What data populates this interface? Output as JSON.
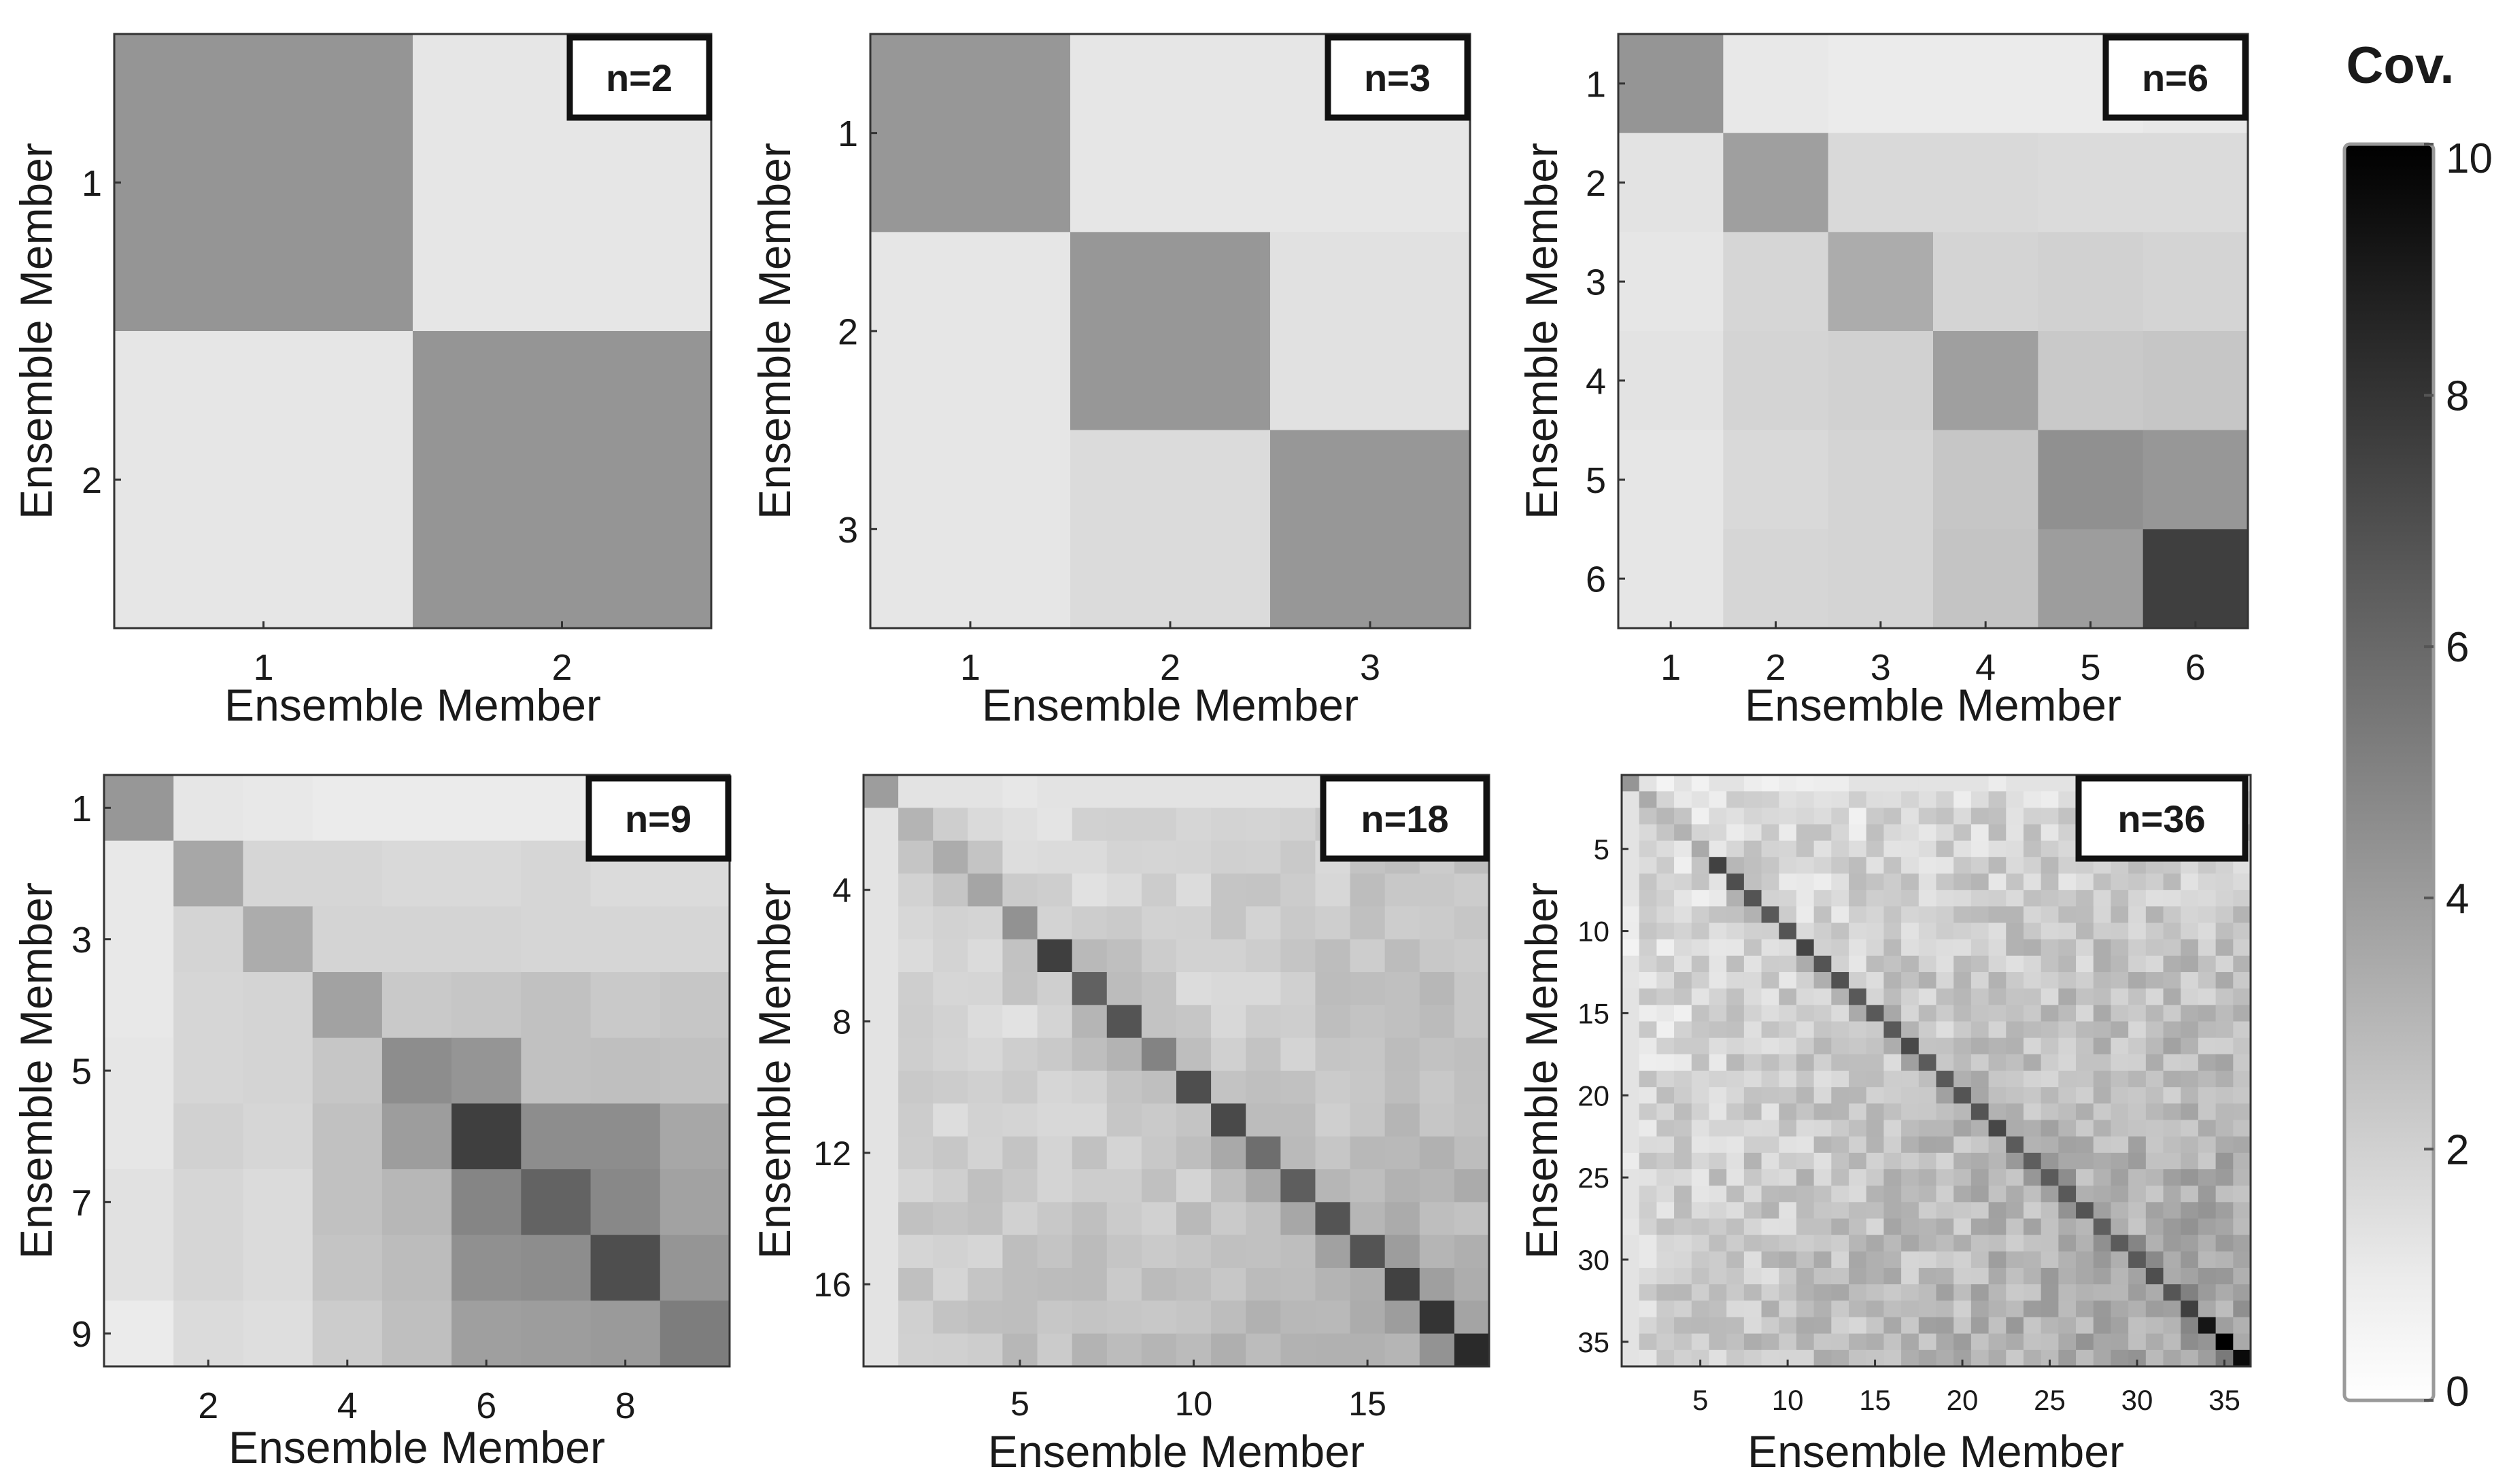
{
  "chart_data": [
    {
      "type": "heatmap",
      "badge": "n=2",
      "xlabel": "Ensemble Member",
      "ylabel": "Ensemble Member",
      "x_ticks": [
        "1",
        "2"
      ],
      "y_ticks": [
        "1",
        "2"
      ],
      "diag": [
        4.3,
        4.3
      ],
      "pair": [
        [
          1,
          1,
          0.8
        ]
      ],
      "values": [
        [
          4.3,
          1.2
        ],
        [
          1.2,
          4.3
        ]
      ]
    },
    {
      "type": "heatmap",
      "badge": "n=3",
      "xlabel": "Ensemble Member",
      "ylabel": "Ensemble Member",
      "x_ticks": [
        "1",
        "2",
        "3"
      ],
      "y_ticks": [
        "1",
        "2",
        "3"
      ],
      "diag": [
        4.2,
        4.2,
        4.2
      ],
      "pair": [
        [
          1,
          1,
          0.8
        ]
      ],
      "values": [
        [
          4.2,
          1.2,
          1.2
        ],
        [
          1.2,
          4.2,
          1.4
        ],
        [
          1.2,
          1.6,
          4.2
        ]
      ]
    },
    {
      "type": "heatmap",
      "badge": "n=6",
      "xlabel": "Ensemble Member",
      "ylabel": "Ensemble Member",
      "x_ticks": [
        "1",
        "2",
        "3",
        "4",
        "5",
        "6"
      ],
      "y_ticks": [
        "1",
        "2",
        "3",
        "4",
        "5",
        "6"
      ],
      "diag": [
        4.3,
        3.9,
        3.4,
        3.9,
        4.5,
        7.6
      ],
      "pair": [
        [
          1,
          1.2,
          0.8
        ]
      ],
      "values": [
        [
          4.3,
          1.1,
          1.0,
          1.0,
          1.0,
          1.1
        ],
        [
          1.3,
          3.9,
          1.7,
          1.7,
          1.6,
          1.6
        ],
        [
          1.2,
          1.8,
          3.4,
          1.9,
          2.0,
          1.9
        ],
        [
          1.3,
          1.9,
          2.0,
          3.9,
          2.3,
          2.4
        ],
        [
          1.2,
          1.7,
          1.9,
          2.4,
          4.5,
          4.2
        ],
        [
          1.2,
          1.8,
          1.9,
          2.5,
          4.0,
          7.6
        ]
      ]
    },
    {
      "type": "heatmap",
      "badge": "n=9",
      "xlabel": "Ensemble Member",
      "ylabel": "Ensemble Member",
      "x_ticks": [
        2,
        4,
        6,
        8
      ],
      "y_ticks": [
        1,
        3,
        5,
        7,
        9
      ],
      "diag": [
        4.2,
        3.6,
        3.4,
        3.8,
        4.6,
        7.6,
        6.2,
        7.0,
        5.2
      ],
      "pair": [
        [
          1,
          1.3,
          1.0
        ],
        [
          6,
          4.2,
          1.3
        ]
      ],
      "values": [
        [
          4.2,
          1.2,
          1.1,
          1.0,
          1.0,
          1.0,
          1.0,
          0.9,
          0.8
        ],
        [
          1.1,
          3.6,
          1.8,
          1.8,
          1.7,
          1.7,
          1.8,
          1.6,
          1.6
        ],
        [
          1.1,
          1.9,
          3.4,
          1.9,
          1.9,
          1.9,
          1.8,
          1.8,
          1.8
        ],
        [
          1.1,
          1.8,
          1.9,
          3.8,
          2.3,
          2.4,
          2.6,
          2.3,
          2.4
        ],
        [
          1.2,
          1.8,
          1.9,
          2.4,
          4.6,
          4.3,
          2.6,
          2.7,
          2.6
        ],
        [
          1.2,
          2.0,
          1.8,
          2.6,
          4.0,
          7.6,
          4.6,
          4.6,
          3.6
        ],
        [
          1.4,
          1.8,
          1.6,
          2.6,
          3.0,
          4.9,
          6.2,
          4.8,
          3.8
        ],
        [
          1.4,
          1.8,
          1.6,
          2.5,
          2.8,
          4.5,
          4.6,
          7.0,
          4.3
        ],
        [
          1.0,
          1.6,
          1.5,
          2.2,
          2.7,
          3.9,
          4.0,
          4.1,
          5.2
        ]
      ]
    },
    {
      "type": "heatmap",
      "badge": "n=18",
      "xlabel": "Ensemble Member",
      "ylabel": "Ensemble Member",
      "x_ticks": [
        5,
        10,
        15
      ],
      "y_ticks": [
        4,
        8,
        12,
        16
      ],
      "diag": [
        4.0,
        3.1,
        3.4,
        3.7,
        4.4,
        7.6,
        6.3,
        6.8,
        5.0,
        7.0,
        7.2,
        5.8,
        6.4,
        6.8,
        6.8,
        7.5,
        8.0,
        8.4
      ],
      "pair": [
        [
          1,
          1.1,
          0.8
        ],
        [
          9,
          3.9,
          1.5
        ]
      ],
      "values": "generated: smooth 18-member covariance matrix (near-diagonal 2.5–5, off-diagonal 1–3.5), diagonal as listed"
    },
    {
      "type": "heatmap",
      "badge": "n=36",
      "xlabel": "Ensemble Member",
      "ylabel": "Ensemble Member",
      "x_ticks": [
        5,
        10,
        15,
        20,
        25,
        30,
        35
      ],
      "y_ticks": [
        5,
        10,
        15,
        20,
        25,
        30,
        35
      ],
      "diag": [
        4.3,
        3.5,
        3.0,
        3.2,
        3.5,
        7.5,
        7.0,
        6.8,
        6.6,
        6.8,
        7.4,
        6.8,
        6.9,
        6.6,
        6.6,
        6.6,
        7.2,
        6.5,
        6.6,
        6.8,
        6.8,
        7.3,
        6.5,
        6.4,
        6.5,
        6.6,
        6.8,
        6.4,
        6.5,
        6.6,
        7.0,
        6.7,
        7.6,
        9.2,
        10.0,
        9.6
      ],
      "pair": [
        [
          1,
          1.0,
          0.7
        ],
        [
          9,
          1.9,
          1.2
        ],
        [
          18,
          3.3,
          1.5
        ]
      ],
      "values": "generated: noisy 36-member covariance matrix (off-diagonal ~1–4.5), diagonal as listed"
    }
  ],
  "colorbar": {
    "title": "Cov.",
    "min": 0,
    "max": 10,
    "ticks": [
      0,
      2,
      4,
      6,
      8,
      10
    ]
  }
}
